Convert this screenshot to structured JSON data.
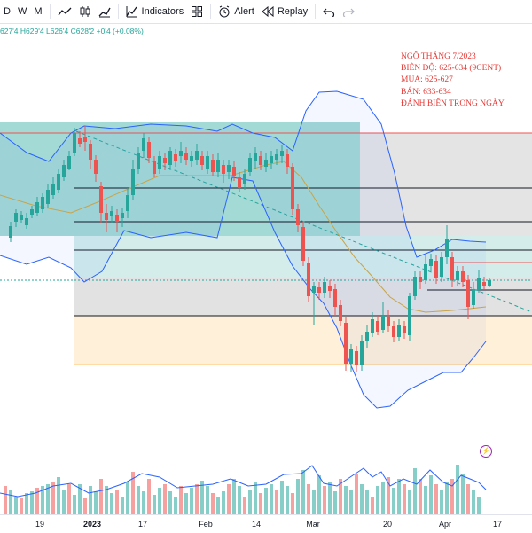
{
  "toolbar": {
    "intervals": [
      "D",
      "W",
      "M"
    ],
    "indicators_label": "Indicators",
    "alert_label": "Alert",
    "replay_label": "Replay"
  },
  "ohlc": {
    "open": "627'4",
    "high": "H629'4",
    "low": "L626'4",
    "close": "C628'2",
    "change": "+0'4 (+0.08%)",
    "up_color": "#26a69a"
  },
  "annotation": {
    "lines": [
      "NGÔ THÁNG 7/2023",
      "BIÊN ĐỘ: 625-634 (9CENT)",
      "MUA: 625-627",
      "BÁN: 633-634",
      "ĐÁNH BIÊN TRONG NGÀY"
    ],
    "color": "#e53935"
  },
  "x_axis": {
    "labels": [
      "19",
      "2023",
      "17",
      "Feb",
      "14",
      "Mar",
      "20",
      "Apr",
      "17"
    ]
  },
  "colors": {
    "up": "#26a69a",
    "down": "#ef5350",
    "bollinger": "#2962ff",
    "ma": "#c8a44a",
    "cloud": "#2962ff",
    "zone_teal": "#26a69a",
    "zone_grey": "#9e9e9e",
    "zone_orange": "#ffcc80"
  },
  "icons": {
    "chart_type": "line-chart-icon",
    "candles": "candlestick-icon",
    "bars": "bar-chart-icon",
    "indicators": "indicators-icon",
    "templates": "grid-templates-icon",
    "alert": "alarm-clock-icon",
    "replay": "replay-icon",
    "undo": "undo-icon",
    "redo": "redo-icon",
    "event": "flash-event-icon"
  }
}
